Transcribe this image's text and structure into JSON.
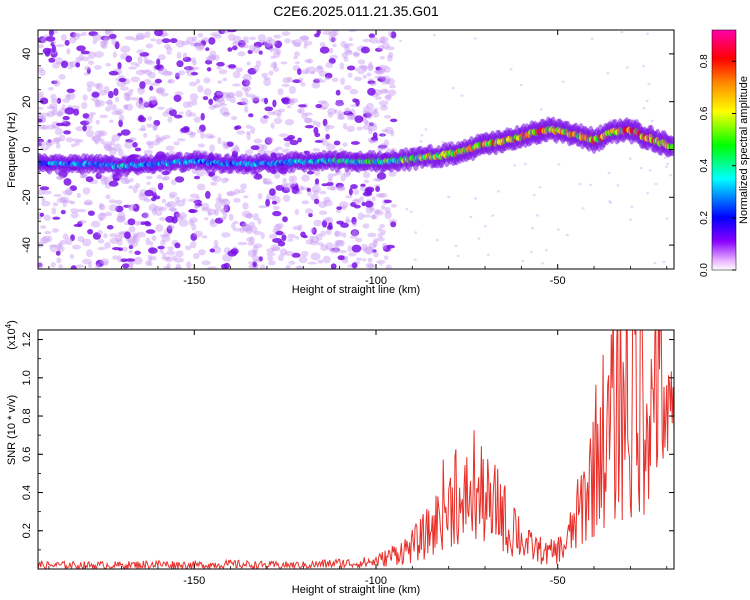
{
  "title": "C2E6.2025.011.21.35.G01",
  "colorbar": {
    "label": "Normalized spectral amplitude",
    "ticks": [
      "0.0",
      "0.2",
      "0.4",
      "0.6",
      "0.8"
    ],
    "tick_values": [
      0.0,
      0.2,
      0.4,
      0.6,
      0.8
    ],
    "range": [
      0,
      0.92
    ],
    "colors": [
      "#ffffff",
      "#8800ff",
      "#0000ff",
      "#00ffff",
      "#00ff00",
      "#ffff00",
      "#ff8800",
      "#ff0000",
      "#ff00aa"
    ]
  },
  "chart_data": [
    {
      "type": "heatmap",
      "xlabel": "Height of straight line (km)",
      "ylabel": "Frequency (Hz)",
      "xlim": [
        -193,
        -18
      ],
      "ylim": [
        -50,
        50
      ],
      "xticks": [
        -150,
        -100,
        -50
      ],
      "yticks": [
        -40,
        -20,
        0,
        20,
        40
      ],
      "xtick_labels": [
        "-150",
        "-100",
        "-50"
      ],
      "ytick_labels": [
        "-40",
        "-20",
        "0",
        "20",
        "40"
      ],
      "ridge": {
        "description": "Dominant frequency ridge vs height",
        "x": [
          -193,
          -180,
          -170,
          -160,
          -150,
          -140,
          -130,
          -120,
          -110,
          -100,
          -90,
          -80,
          -70,
          -60,
          -55,
          -50,
          -45,
          -40,
          -35,
          -30,
          -25,
          -20,
          -18
        ],
        "y": [
          -6,
          -6,
          -7,
          -6,
          -5,
          -6,
          -6,
          -5,
          -5,
          -5,
          -4,
          -2,
          2,
          5,
          8,
          8,
          6,
          4,
          7,
          8,
          5,
          2,
          0
        ],
        "amplitude": [
          0.35,
          0.35,
          0.4,
          0.35,
          0.35,
          0.35,
          0.35,
          0.4,
          0.45,
          0.5,
          0.6,
          0.7,
          0.75,
          0.75,
          0.85,
          0.8,
          0.7,
          0.85,
          0.75,
          0.8,
          0.85,
          0.9,
          0.6
        ]
      },
      "noise_region_xlim": [
        -193,
        -100
      ]
    },
    {
      "type": "line",
      "xlabel": "Height of straight line (km)",
      "ylabel": "SNR (10 * v/v)",
      "y_multiplier": "(x10",
      "y_multiplier_exp": "4",
      "y_multiplier_close": ")",
      "xlim": [
        -193,
        -18
      ],
      "ylim": [
        0,
        1.25
      ],
      "xticks": [
        -150,
        -100,
        -50
      ],
      "yticks": [
        0.2,
        0.4,
        0.6,
        0.8,
        1.0,
        1.2
      ],
      "xtick_labels": [
        "-150",
        "-100",
        "-50"
      ],
      "ytick_labels": [
        "0.2",
        "0.4",
        "0.6",
        "0.8",
        "1.0",
        "1.2"
      ],
      "color": "#e8302a",
      "series": [
        {
          "x": [
            -193,
            -180,
            -170,
            -160,
            -150,
            -140,
            -130,
            -120,
            -110,
            -105,
            -100,
            -97,
            -95,
            -92,
            -90,
            -88,
            -85,
            -83,
            -82,
            -80,
            -78,
            -76,
            -75,
            -74,
            -73,
            -72,
            -70,
            -68,
            -67,
            -65,
            -63,
            -62,
            -60,
            -58,
            -55,
            -53,
            -50,
            -48,
            -46,
            -44,
            -42,
            -40,
            -38,
            -36,
            -35,
            -34,
            -33,
            -32,
            -31,
            -30,
            -29,
            -28,
            -27,
            -26,
            -25,
            -24,
            -23,
            -22,
            -21,
            -20,
            -19,
            -18
          ],
          "y": [
            0.02,
            0.02,
            0.02,
            0.025,
            0.02,
            0.025,
            0.02,
            0.02,
            0.03,
            0.03,
            0.04,
            0.06,
            0.08,
            0.1,
            0.12,
            0.15,
            0.2,
            0.25,
            0.35,
            0.3,
            0.45,
            0.2,
            0.5,
            0.3,
            0.45,
            0.35,
            0.4,
            0.25,
            0.35,
            0.3,
            0.15,
            0.25,
            0.15,
            0.12,
            0.1,
            0.08,
            0.1,
            0.12,
            0.2,
            0.3,
            0.4,
            0.55,
            0.7,
            0.65,
            0.9,
            0.6,
            1.1,
            0.7,
            1.2,
            0.5,
            1.25,
            0.6,
            1.1,
            0.8,
            1.0,
            0.7,
            1.2,
            0.85,
            1.1,
            0.6,
            0.75,
            0.7
          ]
        }
      ]
    }
  ]
}
